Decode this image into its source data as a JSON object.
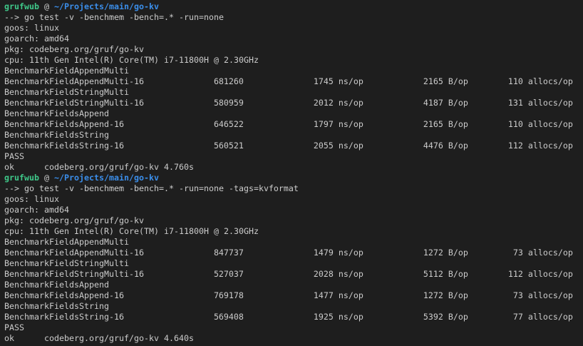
{
  "terminal": {
    "colors": {
      "background": "#1e1e1e",
      "text": "#cccccc",
      "user": "#3fc98a",
      "path": "#3b8eea"
    },
    "runs": [
      {
        "prompt": {
          "user": "grufwub",
          "at": "@",
          "path": "~/Projects/main/go-kv"
        },
        "command": "--> go test -v -benchmem -bench=.* -run=none",
        "info": [
          "goos: linux",
          "goarch: amd64",
          "pkg: codeberg.org/gruf/go-kv",
          "cpu: 11th Gen Intel(R) Core(TM) i7-11800H @ 2.30GHz"
        ],
        "benchmarks": [
          {
            "header": "BenchmarkFieldAppendMulti",
            "name": "BenchmarkFieldAppendMulti-16",
            "iterations": "681260",
            "ns_op": "1745 ns/op",
            "b_op": "2165 B/op",
            "allocs_op": "110 allocs/op"
          },
          {
            "header": "BenchmarkFieldStringMulti",
            "name": "BenchmarkFieldStringMulti-16",
            "iterations": "580959",
            "ns_op": "2012 ns/op",
            "b_op": "4187 B/op",
            "allocs_op": "131 allocs/op"
          },
          {
            "header": "BenchmarkFieldsAppend",
            "name": "BenchmarkFieldsAppend-16",
            "iterations": "646522",
            "ns_op": "1797 ns/op",
            "b_op": "2165 B/op",
            "allocs_op": "110 allocs/op"
          },
          {
            "header": "BenchmarkFieldsString",
            "name": "BenchmarkFieldsString-16",
            "iterations": "560521",
            "ns_op": "2055 ns/op",
            "b_op": "4476 B/op",
            "allocs_op": "112 allocs/op"
          }
        ],
        "status": "PASS",
        "result": "ok      codeberg.org/gruf/go-kv 4.760s"
      },
      {
        "prompt": {
          "user": "grufwub",
          "at": "@",
          "path": "~/Projects/main/go-kv"
        },
        "command": "--> go test -v -benchmem -bench=.* -run=none -tags=kvformat",
        "info": [
          "goos: linux",
          "goarch: amd64",
          "pkg: codeberg.org/gruf/go-kv",
          "cpu: 11th Gen Intel(R) Core(TM) i7-11800H @ 2.30GHz"
        ],
        "benchmarks": [
          {
            "header": "BenchmarkFieldAppendMulti",
            "name": "BenchmarkFieldAppendMulti-16",
            "iterations": "847737",
            "ns_op": "1479 ns/op",
            "b_op": "1272 B/op",
            "allocs_op": "73 allocs/op"
          },
          {
            "header": "BenchmarkFieldStringMulti",
            "name": "BenchmarkFieldStringMulti-16",
            "iterations": "527037",
            "ns_op": "2028 ns/op",
            "b_op": "5112 B/op",
            "allocs_op": "112 allocs/op"
          },
          {
            "header": "BenchmarkFieldsAppend",
            "name": "BenchmarkFieldsAppend-16",
            "iterations": "769178",
            "ns_op": "1477 ns/op",
            "b_op": "1272 B/op",
            "allocs_op": "73 allocs/op"
          },
          {
            "header": "BenchmarkFieldsString",
            "name": "BenchmarkFieldsString-16",
            "iterations": "569408",
            "ns_op": "1925 ns/op",
            "b_op": "5392 B/op",
            "allocs_op": "77 allocs/op"
          }
        ],
        "status": "PASS",
        "result": "ok      codeberg.org/gruf/go-kv 4.640s"
      }
    ]
  }
}
